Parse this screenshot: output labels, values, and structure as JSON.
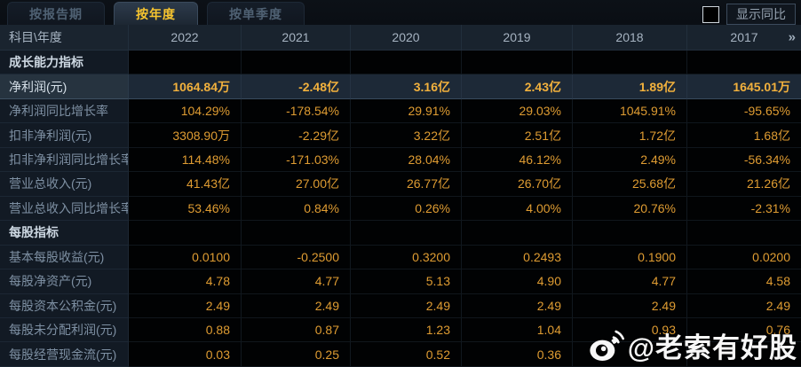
{
  "colors": {
    "value_gold": "#df9c32",
    "highlight_gold": "#f2b13d",
    "tab_active_text": "#f7c52f",
    "highlight_row_bg": "#1d2937",
    "label_text": "#7e90a3",
    "background": "#070b10"
  },
  "tabs": [
    {
      "label": "按报告期",
      "active": false
    },
    {
      "label": "按年度",
      "active": true
    },
    {
      "label": "按单季度",
      "active": false
    }
  ],
  "show_yoy": {
    "label": "显示同比",
    "checked": false
  },
  "table": {
    "corner_label": "科目\\年度",
    "years": [
      "2022",
      "2021",
      "2020",
      "2019",
      "2018",
      "2017"
    ],
    "more_indicator": "»",
    "rows": [
      {
        "label": "成长能力指标",
        "type": "section",
        "values": [
          "",
          "",
          "",
          "",
          "",
          ""
        ]
      },
      {
        "label": "净利润(元)",
        "type": "data",
        "highlighted": true,
        "values": [
          "1064.84万",
          "-2.48亿",
          "3.16亿",
          "2.43亿",
          "1.89亿",
          "1645.01万"
        ]
      },
      {
        "label": "净利润同比增长率",
        "type": "data",
        "values": [
          "104.29%",
          "-178.54%",
          "29.91%",
          "29.03%",
          "1045.91%",
          "-95.65%"
        ]
      },
      {
        "label": "扣非净利润(元)",
        "type": "data",
        "values": [
          "3308.90万",
          "-2.29亿",
          "3.22亿",
          "2.51亿",
          "1.72亿",
          "1.68亿"
        ]
      },
      {
        "label": "扣非净利润同比增长率",
        "type": "data",
        "values": [
          "114.48%",
          "-171.03%",
          "28.04%",
          "46.12%",
          "2.49%",
          "-56.34%"
        ]
      },
      {
        "label": "营业总收入(元)",
        "type": "data",
        "values": [
          "41.43亿",
          "27.00亿",
          "26.77亿",
          "26.70亿",
          "25.68亿",
          "21.26亿"
        ]
      },
      {
        "label": "营业总收入同比增长率",
        "type": "data",
        "values": [
          "53.46%",
          "0.84%",
          "0.26%",
          "4.00%",
          "20.76%",
          "-2.31%"
        ]
      },
      {
        "label": "每股指标",
        "type": "section",
        "values": [
          "",
          "",
          "",
          "",
          "",
          ""
        ]
      },
      {
        "label": "基本每股收益(元)",
        "type": "data",
        "values": [
          "0.0100",
          "-0.2500",
          "0.3200",
          "0.2493",
          "0.1900",
          "0.0200"
        ]
      },
      {
        "label": "每股净资产(元)",
        "type": "data",
        "values": [
          "4.78",
          "4.77",
          "5.13",
          "4.90",
          "4.77",
          "4.58"
        ]
      },
      {
        "label": "每股资本公积金(元)",
        "type": "data",
        "values": [
          "2.49",
          "2.49",
          "2.49",
          "2.49",
          "2.49",
          "2.49"
        ]
      },
      {
        "label": "每股未分配利润(元)",
        "type": "data",
        "values": [
          "0.88",
          "0.87",
          "1.23",
          "1.04",
          "0.93",
          "0.76"
        ]
      },
      {
        "label": "每股经营现金流(元)",
        "type": "data",
        "values": [
          "0.03",
          "0.25",
          "0.52",
          "0.36",
          "",
          ""
        ]
      }
    ]
  },
  "watermark": {
    "handle": "@老索有好股",
    "icon": "weibo-icon"
  }
}
